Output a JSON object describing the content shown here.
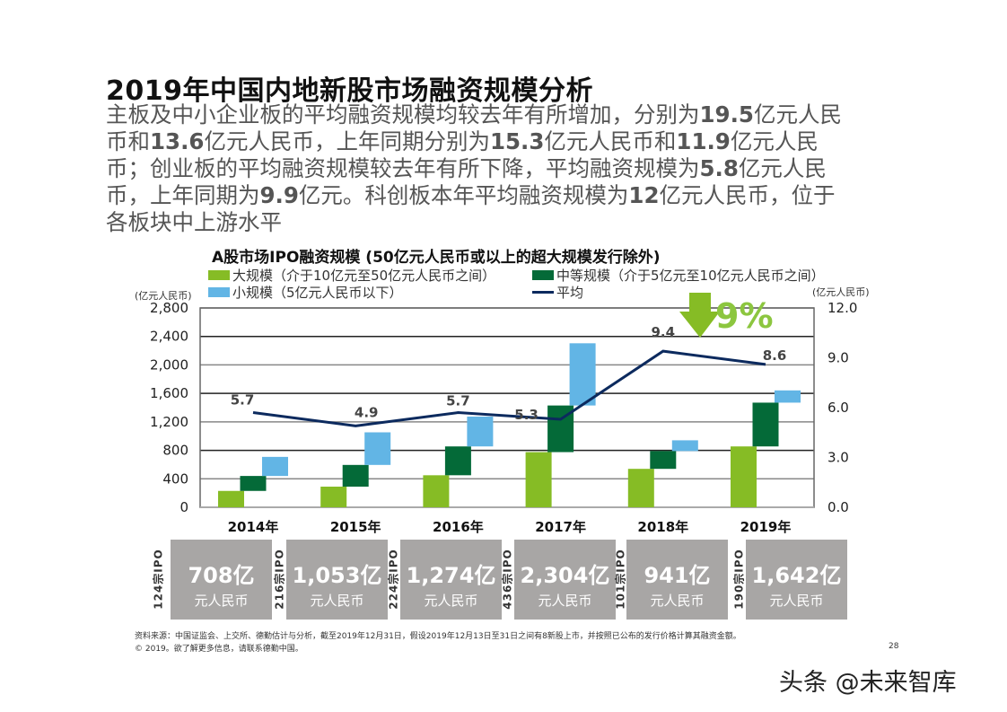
{
  "slide": {
    "title": "2019年中国内地新股市场融资规模分析",
    "body_lines": [
      [
        {
          "t": "主板及中小企业板的平均融资规模均较去年有所增加，分别为",
          "b": false
        },
        {
          "t": "19.5",
          "b": true
        },
        {
          "t": "亿元人民",
          "b": false
        }
      ],
      [
        {
          "t": "币和",
          "b": false
        },
        {
          "t": "13.6",
          "b": true
        },
        {
          "t": "亿元人民币，上年同期分别为",
          "b": false
        },
        {
          "t": "15.3",
          "b": true
        },
        {
          "t": "亿元人民币和",
          "b": false
        },
        {
          "t": "11.9",
          "b": true
        },
        {
          "t": "亿元人民",
          "b": false
        }
      ],
      [
        {
          "t": "币；创业板的平均融资规模较去年有所下降，平均融资规模为",
          "b": false
        },
        {
          "t": "5.8",
          "b": true
        },
        {
          "t": "亿元人民",
          "b": false
        }
      ],
      [
        {
          "t": "币，上年同期为",
          "b": false
        },
        {
          "t": "9.9",
          "b": true
        },
        {
          "t": "亿元。科创板本年平均融资规模为",
          "b": false
        },
        {
          "t": "12",
          "b": true
        },
        {
          "t": "亿元人民币，位于",
          "b": false
        }
      ],
      [
        {
          "t": "各板块中上游水平",
          "b": false
        }
      ]
    ],
    "source": "资料来源：中国证监会、上交所、德勤估计与分析，截至2019年12月31日，假设2019年12月13日至31日之间有8新股上市，并按照已公布的发行价格计算其融资金额。",
    "copyright": "© 2019。欲了解更多信息，请联系德勤中国。",
    "page_number": "28",
    "watermark": "头条 @未来智库"
  },
  "chart_data": {
    "type": "bar",
    "subtype": "stacked-waterfall-with-line",
    "title": "A股市场IPO融资规模 (50亿元人民币或以上的超大规模发行除外)",
    "categories": [
      "2014年",
      "2015年",
      "2016年",
      "2017年",
      "2018年",
      "2019年"
    ],
    "y_left": {
      "label": "(亿元人民币)",
      "range": [
        0,
        2800
      ],
      "ticks": [
        "0",
        "400",
        "800",
        "1,200",
        "1,600",
        "2,000",
        "2,400",
        "2,800"
      ]
    },
    "y_right": {
      "label": "(亿元人民币)",
      "range": [
        0,
        12
      ],
      "ticks": [
        "0.0",
        "3.0",
        "6.0",
        "9.0",
        "12.0"
      ]
    },
    "grid": true,
    "legend_position": "top",
    "series": [
      {
        "name": "大规模（介于10亿元至50亿元人民币之间）",
        "kind": "bar",
        "color": "#86bc25",
        "values": [
          230,
          290,
          450,
          775,
          540,
          855
        ]
      },
      {
        "name": "中等规模（介于5亿元至10亿元人民币之间）",
        "kind": "bar",
        "color": "#046a38",
        "values": [
          210,
          305,
          405,
          655,
          250,
          615
        ]
      },
      {
        "name": "小规模（5亿元人民币以下）",
        "kind": "bar",
        "color": "#62b5e5",
        "values": [
          268,
          458,
          419,
          874,
          151,
          172
        ]
      },
      {
        "name": "平均",
        "kind": "line",
        "axis": "right",
        "color": "#0c2a5e",
        "values": [
          5.7,
          4.9,
          5.7,
          5.3,
          9.4,
          8.6
        ],
        "labels": [
          "5.7",
          "4.9",
          "5.7",
          "5.3",
          "9.4",
          "8.6"
        ]
      }
    ],
    "annotation": {
      "text": "9%",
      "icon": "down-arrow-icon",
      "color": "#8cc63f"
    },
    "totals": [
      {
        "ipo_count": "124宗IPO",
        "amount": "708亿",
        "currency": "元人民币"
      },
      {
        "ipo_count": "216宗IPO",
        "amount": "1,053亿",
        "currency": "元人民币"
      },
      {
        "ipo_count": "224宗IPO",
        "amount": "1,274亿",
        "currency": "元人民币"
      },
      {
        "ipo_count": "436宗IPO",
        "amount": "2,304亿",
        "currency": "元人民币"
      },
      {
        "ipo_count": "101宗IPO",
        "amount": "941亿",
        "currency": "元人民币"
      },
      {
        "ipo_count": "190宗IPO",
        "amount": "1,642亿",
        "currency": "元人民币"
      }
    ]
  }
}
